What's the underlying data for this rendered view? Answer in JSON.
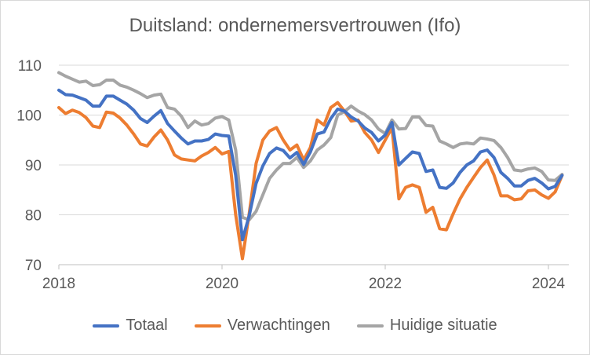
{
  "chart_data": {
    "type": "line",
    "title": "Duitsland: ondernemersvertrouwen (Ifo)",
    "ylim": [
      70,
      110
    ],
    "yticks": [
      70,
      80,
      90,
      100,
      110
    ],
    "xlim": [
      2018,
      2024.25
    ],
    "xticks": [
      2018,
      2020,
      2022,
      2024
    ],
    "grid": "horizontal",
    "legend_position": "bottom",
    "x": [
      2018.0,
      2018.083,
      2018.167,
      2018.25,
      2018.333,
      2018.417,
      2018.5,
      2018.583,
      2018.667,
      2018.75,
      2018.833,
      2018.917,
      2019.0,
      2019.083,
      2019.167,
      2019.25,
      2019.333,
      2019.417,
      2019.5,
      2019.583,
      2019.667,
      2019.75,
      2019.833,
      2019.917,
      2020.0,
      2020.083,
      2020.167,
      2020.25,
      2020.333,
      2020.417,
      2020.5,
      2020.583,
      2020.667,
      2020.75,
      2020.833,
      2020.917,
      2021.0,
      2021.083,
      2021.167,
      2021.25,
      2021.333,
      2021.417,
      2021.5,
      2021.583,
      2021.667,
      2021.75,
      2021.833,
      2021.917,
      2022.0,
      2022.083,
      2022.167,
      2022.25,
      2022.333,
      2022.417,
      2022.5,
      2022.583,
      2022.667,
      2022.75,
      2022.833,
      2022.917,
      2023.0,
      2023.083,
      2023.167,
      2023.25,
      2023.333,
      2023.417,
      2023.5,
      2023.583,
      2023.667,
      2023.75,
      2023.833,
      2023.917,
      2024.0,
      2024.083,
      2024.167
    ],
    "series": [
      {
        "name": "Totaal",
        "color": "#4472c4",
        "values": [
          105.0,
          104.1,
          104.0,
          103.5,
          103.0,
          101.8,
          101.8,
          103.8,
          103.8,
          103.0,
          102.2,
          101.0,
          99.3,
          98.5,
          99.8,
          100.9,
          98.3,
          96.8,
          95.4,
          94.2,
          94.8,
          94.8,
          95.1,
          96.2,
          95.9,
          95.8,
          87.9,
          75.0,
          79.8,
          86.3,
          89.8,
          92.3,
          93.4,
          92.9,
          91.4,
          92.5,
          90.1,
          92.6,
          96.2,
          96.6,
          99.3,
          101.2,
          100.8,
          99.6,
          98.8,
          97.4,
          96.5,
          94.8,
          96.0,
          98.5,
          90.0,
          91.3,
          92.6,
          92.3,
          88.7,
          89.0,
          85.5,
          85.3,
          86.4,
          88.5,
          90.0,
          90.8,
          92.6,
          93.0,
          91.5,
          88.5,
          87.3,
          85.8,
          85.8,
          86.9,
          87.3,
          86.4,
          85.2,
          85.7,
          87.9
        ]
      },
      {
        "name": "Verwachtingen",
        "color": "#ed7d31",
        "values": [
          101.5,
          100.3,
          101.0,
          100.5,
          99.5,
          97.8,
          97.5,
          100.6,
          100.4,
          99.4,
          98.0,
          96.2,
          94.2,
          93.8,
          95.6,
          97.0,
          95.0,
          92.0,
          91.2,
          91.0,
          90.8,
          91.8,
          92.5,
          93.5,
          92.2,
          92.7,
          80.0,
          71.2,
          80.2,
          90.3,
          95.0,
          96.8,
          97.5,
          95.0,
          93.0,
          94.0,
          91.0,
          93.5,
          99.0,
          98.0,
          101.5,
          102.5,
          100.8,
          98.8,
          99.0,
          96.5,
          95.0,
          92.5,
          95.0,
          97.5,
          83.2,
          85.5,
          86.0,
          85.5,
          80.5,
          81.5,
          77.2,
          77.0,
          80.2,
          83.2,
          85.5,
          87.5,
          89.5,
          91.0,
          88.0,
          83.8,
          83.8,
          83.0,
          83.2,
          84.8,
          85.0,
          84.0,
          83.3,
          84.6,
          87.9
        ]
      },
      {
        "name": "Huidige situatie",
        "color": "#a5a5a5",
        "values": [
          108.5,
          107.8,
          107.2,
          106.6,
          106.8,
          105.9,
          106.1,
          107.0,
          107.0,
          106.0,
          105.6,
          105.0,
          104.3,
          103.5,
          104.0,
          104.2,
          101.5,
          101.2,
          99.8,
          97.5,
          98.8,
          98.0,
          98.3,
          99.4,
          99.7,
          99.0,
          93.0,
          79.5,
          79.0,
          80.7,
          84.0,
          87.3,
          89.0,
          90.3,
          90.3,
          91.5,
          89.5,
          90.8,
          93.0,
          94.0,
          95.5,
          100.0,
          100.7,
          101.8,
          100.8,
          100.1,
          99.0,
          97.2,
          96.3,
          99.0,
          97.2,
          97.3,
          99.6,
          99.6,
          97.9,
          97.8,
          94.8,
          94.2,
          93.5,
          94.2,
          94.4,
          94.2,
          95.4,
          95.2,
          94.9,
          93.5,
          91.5,
          89.0,
          88.8,
          89.2,
          89.4,
          88.7,
          87.0,
          86.9,
          88.1
        ]
      }
    ]
  }
}
